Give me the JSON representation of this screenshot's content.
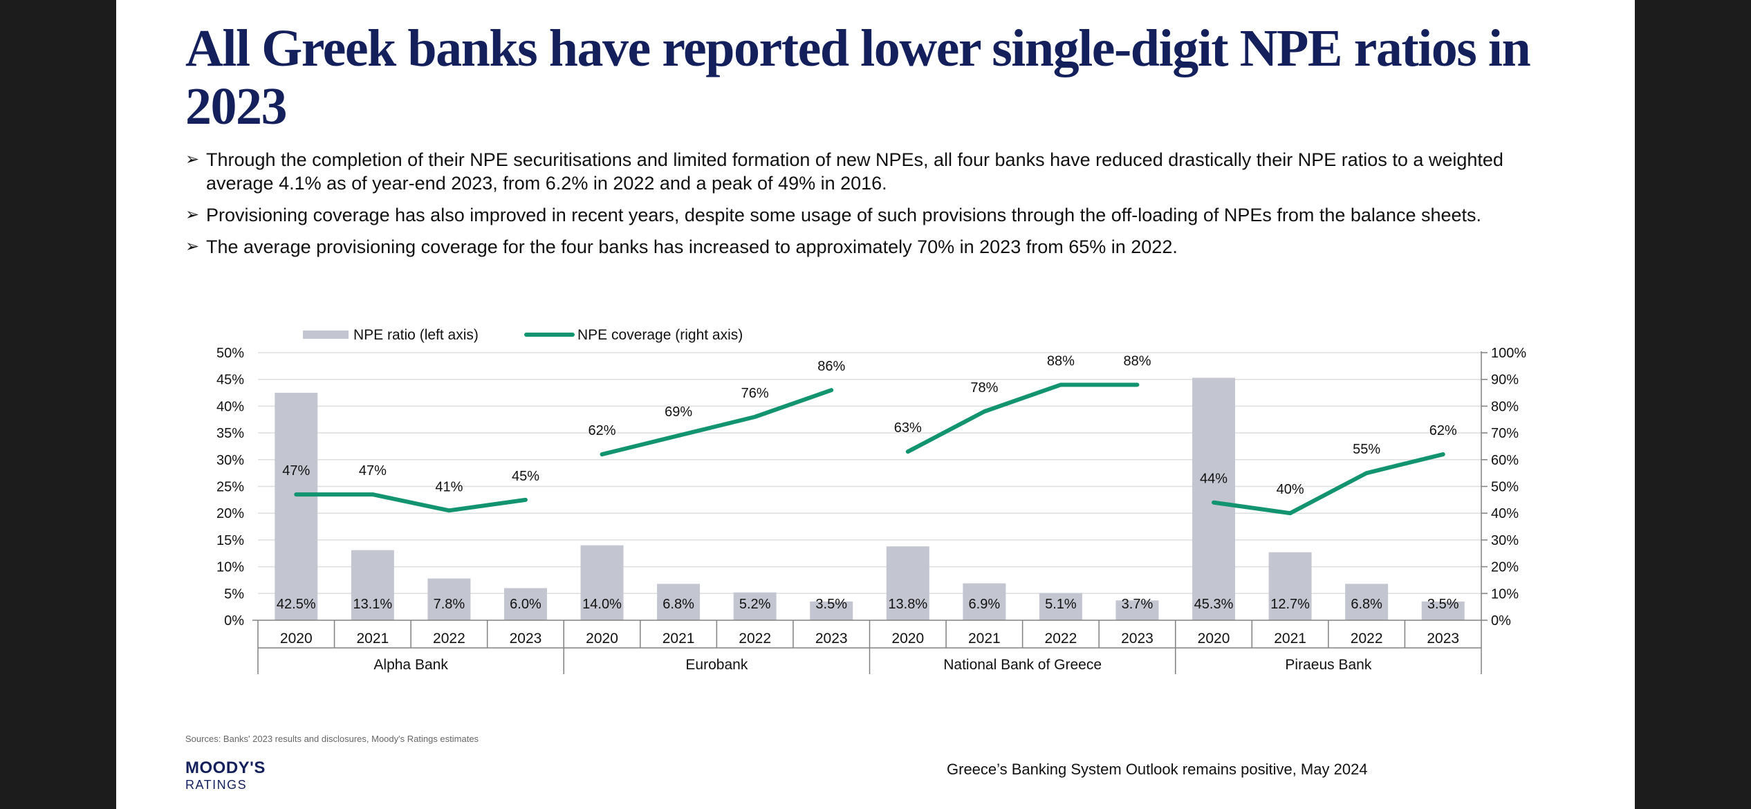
{
  "slide": {
    "title": "All Greek banks have reported lower single-digit NPE ratios in 2023",
    "bullet_marker": "➢",
    "bullets": [
      "Through the completion of their NPE securitisations and limited formation of new NPEs, all four banks have reduced drastically their NPE ratios to a weighted average 4.1% as of year-end 2023, from 6.2% in 2022 and a peak of 49% in 2016.",
      "Provisioning coverage has also improved in recent years, despite some usage of such provisions through the off-loading of NPEs from the balance sheets.",
      "The average provisioning coverage for the four banks has increased to approximately 70% in 2023 from 65% in 2022."
    ],
    "source": "Sources: Banks' 2023 results and disclosures, Moody's Ratings estimates",
    "logo_main": "MOODY'S",
    "logo_sub": "RATINGS",
    "footer": "Greece’s Banking System Outlook remains positive, May 2024"
  },
  "colors": {
    "bar": "#c3c6d0",
    "line": "#11946f",
    "axis": "#808080",
    "grid": "#dedede",
    "text": "#111111"
  },
  "chart_data": {
    "type": "bar",
    "title": "",
    "groups": [
      "Alpha Bank",
      "Eurobank",
      "National Bank of Greece",
      "Piraeus Bank"
    ],
    "years": [
      "2020",
      "2021",
      "2022",
      "2023"
    ],
    "series": [
      {
        "name": "NPE ratio (left axis)",
        "type": "bar",
        "axis": "left",
        "values": [
          [
            42.5,
            13.1,
            7.8,
            6.0
          ],
          [
            14.0,
            6.8,
            5.2,
            3.5
          ],
          [
            13.8,
            6.9,
            5.1,
            3.7
          ],
          [
            45.3,
            12.7,
            6.8,
            3.5
          ]
        ],
        "labels": [
          [
            "42.5%",
            "13.1%",
            "7.8%",
            "6.0%"
          ],
          [
            "14.0%",
            "6.8%",
            "5.2%",
            "3.5%"
          ],
          [
            "13.8%",
            "6.9%",
            "5.1%",
            "3.7%"
          ],
          [
            "45.3%",
            "12.7%",
            "6.8%",
            "3.5%"
          ]
        ]
      },
      {
        "name": "NPE coverage (right axis)",
        "type": "line",
        "axis": "right",
        "values": [
          [
            47,
            47,
            41,
            45
          ],
          [
            62,
            69,
            76,
            86
          ],
          [
            63,
            78,
            88,
            88
          ],
          [
            44,
            40,
            55,
            62
          ]
        ],
        "labels": [
          [
            "47%",
            "47%",
            "41%",
            "45%"
          ],
          [
            "62%",
            "69%",
            "76%",
            "86%"
          ],
          [
            "63%",
            "78%",
            "88%",
            "88%"
          ],
          [
            "44%",
            "40%",
            "55%",
            "62%"
          ]
        ]
      }
    ],
    "left_axis": {
      "ylim": [
        0,
        50
      ],
      "ticks": [
        "0%",
        "5%",
        "10%",
        "15%",
        "20%",
        "25%",
        "30%",
        "35%",
        "40%",
        "45%",
        "50%"
      ]
    },
    "right_axis": {
      "ylim": [
        0,
        100
      ],
      "ticks": [
        "0%",
        "10%",
        "20%",
        "30%",
        "40%",
        "50%",
        "60%",
        "70%",
        "80%",
        "90%",
        "100%"
      ]
    },
    "legend_position": "top-left",
    "grid": true
  }
}
